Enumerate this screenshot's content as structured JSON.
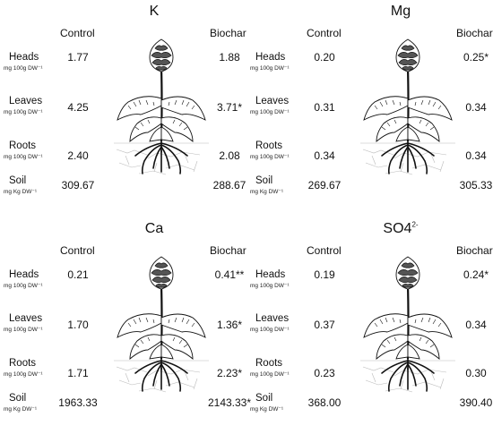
{
  "column_headers": {
    "control": "Control",
    "biochar": "Biochar"
  },
  "row_labels": [
    {
      "name": "Heads",
      "unit": "mg 100g DW⁻¹"
    },
    {
      "name": "Leaves",
      "unit": "mg 100g DW⁻¹"
    },
    {
      "name": "Roots",
      "unit": "mg 100g DW⁻¹"
    },
    {
      "name": "Soil",
      "unit": "mg Kg DW⁻¹"
    }
  ],
  "panels": [
    {
      "title": "K",
      "title_sup": "",
      "values": [
        {
          "control": "1.77",
          "biochar": "1.88"
        },
        {
          "control": "4.25",
          "biochar": "3.71*"
        },
        {
          "control": "2.40",
          "biochar": "2.08"
        },
        {
          "control": "309.67",
          "biochar": "288.67"
        }
      ]
    },
    {
      "title": "Mg",
      "title_sup": "",
      "values": [
        {
          "control": "0.20",
          "biochar": "0.25*"
        },
        {
          "control": "0.31",
          "biochar": "0.34"
        },
        {
          "control": "0.34",
          "biochar": "0.34"
        },
        {
          "control": "269.67",
          "biochar": "305.33"
        }
      ]
    },
    {
      "title": "Ca",
      "title_sup": "",
      "values": [
        {
          "control": "0.21",
          "biochar": "0.41**"
        },
        {
          "control": "1.70",
          "biochar": "1.36*"
        },
        {
          "control": "1.71",
          "biochar": "2.23*"
        },
        {
          "control": "1963.33",
          "biochar": "2143.33*"
        }
      ]
    },
    {
      "title": "SO4",
      "title_sup": "2-",
      "values": [
        {
          "control": "0.19",
          "biochar": "0.24*"
        },
        {
          "control": "0.37",
          "biochar": "0.34"
        },
        {
          "control": "0.23",
          "biochar": "0.30"
        },
        {
          "control": "368.00",
          "biochar": "390.40"
        }
      ]
    }
  ],
  "icons": {
    "plant": "artichoke-plant-icon"
  }
}
